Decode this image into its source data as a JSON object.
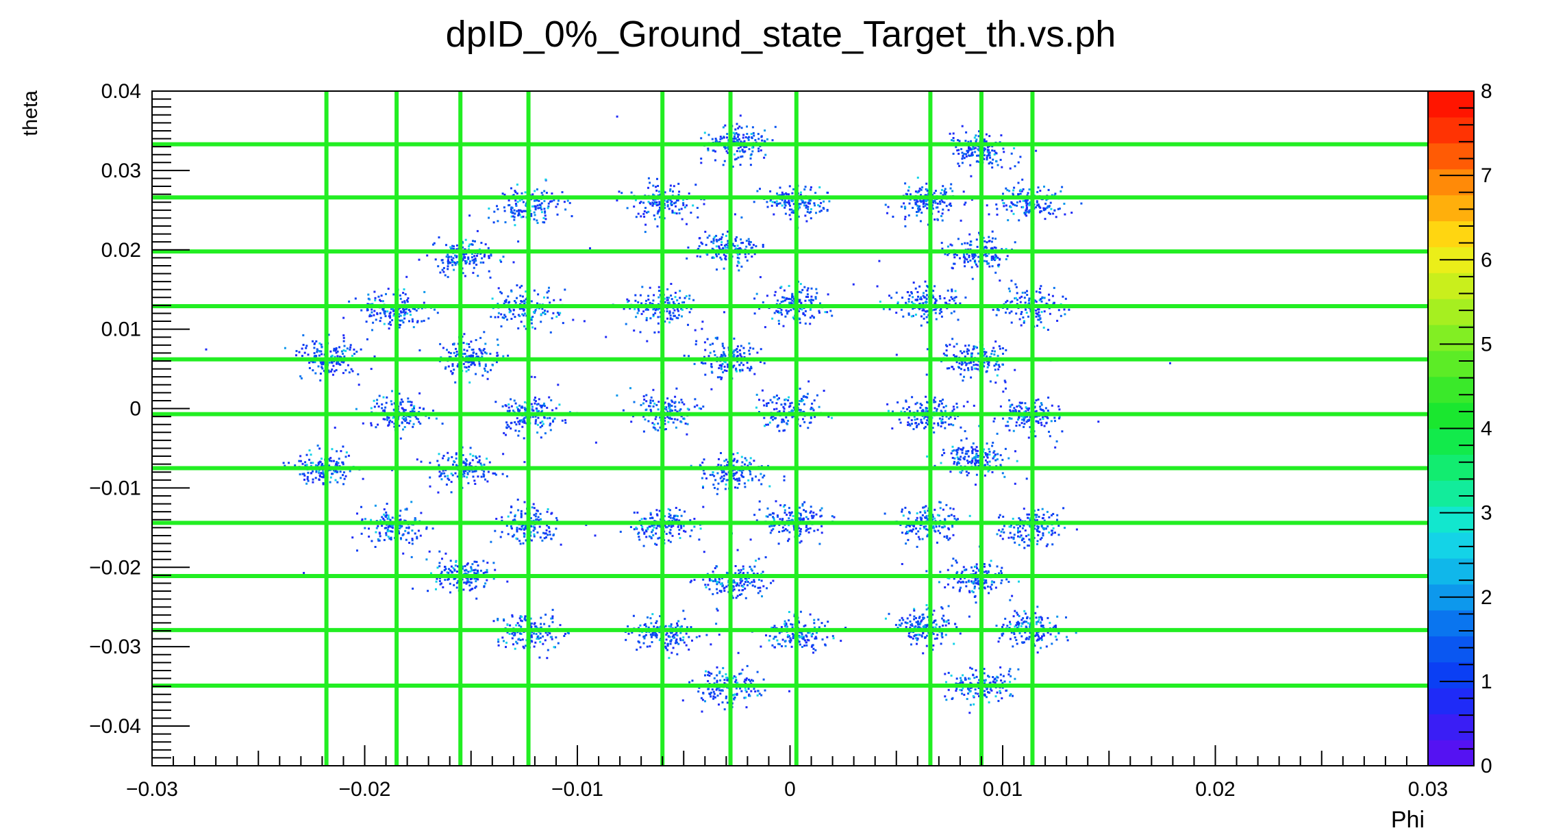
{
  "chart_data": {
    "type": "scatter",
    "title": "dpID_0%_Ground_state_Target_th.vs.ph",
    "xlabel": "Phi",
    "ylabel": "theta",
    "xlim": [
      -0.03,
      0.03
    ],
    "ylim": [
      -0.045,
      0.04
    ],
    "x_ticks": [
      {
        "value": -0.03,
        "label": "−0.03"
      },
      {
        "value": -0.02,
        "label": "−0.02"
      },
      {
        "value": -0.01,
        "label": "−0.01"
      },
      {
        "value": 0,
        "label": "0"
      },
      {
        "value": 0.01,
        "label": "0.01"
      },
      {
        "value": 0.02,
        "label": "0.02"
      },
      {
        "value": 0.03,
        "label": "0.03"
      }
    ],
    "y_ticks": [
      {
        "value": 0.04,
        "label": "0.04"
      },
      {
        "value": 0.03,
        "label": "0.03"
      },
      {
        "value": 0.02,
        "label": "0.02"
      },
      {
        "value": 0.01,
        "label": "0.01"
      },
      {
        "value": 0,
        "label": "0"
      },
      {
        "value": -0.01,
        "label": "−0.01"
      },
      {
        "value": -0.02,
        "label": "−0.02"
      },
      {
        "value": -0.03,
        "label": "−0.03"
      },
      {
        "value": -0.04,
        "label": "−0.04"
      }
    ],
    "grid": false,
    "guide_lines": {
      "color": "#22ee22",
      "vertical_phi": [
        -0.0218,
        -0.0185,
        -0.0155,
        -0.0123,
        -0.006,
        -0.0028,
        0.0003,
        0.0066,
        0.009,
        0.0114
      ],
      "horizontal_theta": [
        0.0333,
        0.0266,
        0.0198,
        0.0129,
        0.0062,
        -0.0007,
        -0.0075,
        -0.0144,
        -0.0211,
        -0.0279,
        -0.0349
      ]
    },
    "clusters": [
      {
        "phi": -0.0025,
        "theta": 0.0335
      },
      {
        "phi": -0.0124,
        "theta": 0.0256
      },
      {
        "phi": -0.006,
        "theta": 0.0261
      },
      {
        "phi": 0.0001,
        "theta": 0.0262
      },
      {
        "phi": 0.0064,
        "theta": 0.0262
      },
      {
        "phi": 0.0113,
        "theta": 0.0259
      },
      {
        "phi": 0.0089,
        "theta": 0.0326
      },
      {
        "phi": -0.0155,
        "theta": 0.0193
      },
      {
        "phi": -0.0029,
        "theta": 0.0203
      },
      {
        "phi": 0.0088,
        "theta": 0.0197
      },
      {
        "phi": -0.0187,
        "theta": 0.0126
      },
      {
        "phi": -0.0124,
        "theta": 0.0128
      },
      {
        "phi": -0.0061,
        "theta": 0.0128
      },
      {
        "phi": 0.0002,
        "theta": 0.0131
      },
      {
        "phi": 0.0064,
        "theta": 0.0134
      },
      {
        "phi": 0.0113,
        "theta": 0.0129
      },
      {
        "phi": -0.0218,
        "theta": 0.0066
      },
      {
        "phi": -0.0152,
        "theta": 0.0065
      },
      {
        "phi": -0.0029,
        "theta": 0.0063
      },
      {
        "phi": 0.0087,
        "theta": 0.0063
      },
      {
        "phi": -0.0184,
        "theta": -0.0005
      },
      {
        "phi": -0.0123,
        "theta": -0.0006
      },
      {
        "phi": -0.006,
        "theta": -0.0004
      },
      {
        "phi": 0.0001,
        "theta": -0.0003
      },
      {
        "phi": 0.0064,
        "theta": -0.0005
      },
      {
        "phi": 0.0111,
        "theta": -0.0008
      },
      {
        "phi": -0.0219,
        "theta": -0.0073
      },
      {
        "phi": -0.0154,
        "theta": -0.0075
      },
      {
        "phi": -0.0028,
        "theta": -0.0078
      },
      {
        "phi": 0.0087,
        "theta": -0.0062
      },
      {
        "phi": -0.0187,
        "theta": -0.0147
      },
      {
        "phi": -0.0123,
        "theta": -0.0145
      },
      {
        "phi": -0.006,
        "theta": -0.0146
      },
      {
        "phi": 0.0001,
        "theta": -0.0141
      },
      {
        "phi": 0.0064,
        "theta": -0.0143
      },
      {
        "phi": 0.0113,
        "theta": -0.0148
      },
      {
        "phi": -0.0153,
        "theta": -0.0209
      },
      {
        "phi": -0.0027,
        "theta": -0.0218
      },
      {
        "phi": 0.0086,
        "theta": -0.0212
      },
      {
        "phi": -0.0123,
        "theta": -0.0279
      },
      {
        "phi": -0.006,
        "theta": -0.0283
      },
      {
        "phi": 0.0003,
        "theta": -0.0283
      },
      {
        "phi": 0.0063,
        "theta": -0.0275
      },
      {
        "phi": 0.0113,
        "theta": -0.0275
      },
      {
        "phi": -0.0029,
        "theta": -0.0351
      },
      {
        "phi": 0.0088,
        "theta": -0.0349
      }
    ],
    "colorbar": {
      "range": [
        0,
        8
      ],
      "tick_labels": [
        "0",
        "1",
        "2",
        "3",
        "4",
        "5",
        "6",
        "7",
        "8"
      ],
      "bands": [
        "#5512f2",
        "#3a1ef5",
        "#1f2bf7",
        "#0b3ff4",
        "#0a57f1",
        "#0a75ef",
        "#0d98ec",
        "#10b7ea",
        "#14d3e7",
        "#12e7ce",
        "#12ec9b",
        "#12ec70",
        "#12ea4b",
        "#1ae72f",
        "#3ae92a",
        "#5cec26",
        "#82ee23",
        "#a6ef20",
        "#c9ef1c",
        "#ebee19",
        "#ffd611",
        "#ffaf0c",
        "#ff8a08",
        "#ff5b05",
        "#ff3303",
        "#ff1500"
      ]
    }
  }
}
